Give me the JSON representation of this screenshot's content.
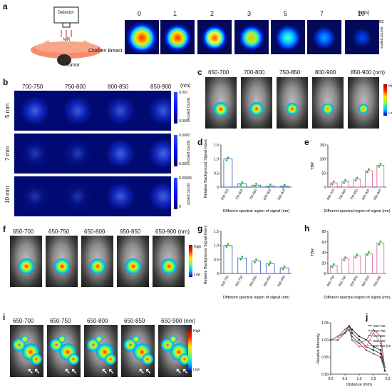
{
  "panels": {
    "a": "a",
    "b": "b",
    "c": "c",
    "d": "d",
    "e": "e",
    "f": "f",
    "g": "g",
    "h": "h",
    "i": "i",
    "j": "j"
  },
  "a": {
    "detector": "Detector",
    "nir": "NIR",
    "chicken": "Chicken Breast",
    "tumor": "Tumor",
    "depths": [
      "0",
      "1",
      "2",
      "3",
      "5",
      "7",
      "10"
    ],
    "unit": "(mm)",
    "scale_max": "0.002",
    "scale_min": "0",
    "scale_label": "scaled counts"
  },
  "b": {
    "ranges": [
      "700-750",
      "750-800",
      "800-850",
      "850-900"
    ],
    "unit": "(nm)",
    "rows": [
      {
        "depth": "5 mm",
        "max": "0.001",
        "min": "0.0005"
      },
      {
        "depth": "7 mm",
        "max": "0.0002",
        "min": "0.0001"
      },
      {
        "depth": "10 mm",
        "max": "0.00005",
        "min": "0"
      }
    ],
    "scale_label": "scaled counts"
  },
  "c": {
    "ranges": [
      "650-700",
      "700-800",
      "750-850",
      "800-900",
      "850-900 (nm)"
    ],
    "high": "High",
    "low": "Low"
  },
  "f": {
    "ranges": [
      "650-700",
      "650-750",
      "650-800",
      "650-850",
      "650-900 (nm)"
    ],
    "high": "High",
    "low": "Low"
  },
  "i": {
    "ranges": [
      "650-700",
      "650-750",
      "650-800",
      "650-850",
      "650-900 (nm)"
    ],
    "high": "High",
    "low": "Low"
  },
  "chart_data": [
    {
      "id": "d",
      "type": "bar",
      "ylabel": "Relative Background Signal Intensity",
      "xlabel": "Different spectral region of signal (nm)",
      "categories": [
        "650-700",
        "700-800",
        "750-850",
        "800-900",
        "850-900"
      ],
      "values": [
        1.0,
        0.12,
        0.07,
        0.04,
        0.03
      ],
      "ylim": [
        0,
        1.5
      ],
      "yticks": [
        "0",
        "0.5",
        "1.0",
        "1.5"
      ]
    },
    {
      "id": "e",
      "type": "bar",
      "ylabel": "TBR",
      "xlabel": "Different spectral region of signal (nm)",
      "categories": [
        "650-700",
        "700-800",
        "750-850",
        "800-900",
        "850-900"
      ],
      "values": [
        15,
        20,
        28,
        58,
        78
      ],
      "ylim": [
        0,
        150
      ],
      "yticks": [
        "0",
        "50",
        "100",
        "150"
      ]
    },
    {
      "id": "g",
      "type": "bar",
      "ylabel": "Relative Background Signal Intensity",
      "xlabel": "Different spectral region of signal (nm)",
      "categories": [
        "650-700",
        "650-750",
        "650-800",
        "650-850",
        "650-900"
      ],
      "values": [
        1.0,
        0.55,
        0.45,
        0.35,
        0.2
      ],
      "ylim": [
        0,
        1.5
      ],
      "yticks": [
        "0",
        "0.5",
        "1.0",
        "1.5"
      ]
    },
    {
      "id": "h",
      "type": "bar",
      "ylabel": "TBR",
      "xlabel": "Different spectral region of signal (nm)",
      "categories": [
        "650-700",
        "650-750",
        "650-800",
        "650-850",
        "650-900"
      ],
      "values": [
        15,
        28,
        33,
        38,
        58
      ],
      "ylim": [
        0,
        80
      ],
      "yticks": [
        "0",
        "20",
        "40",
        "60",
        "80"
      ]
    },
    {
      "id": "j",
      "type": "line",
      "ylabel": "Relative Intensity",
      "xlabel": "Distance (mm)",
      "xlim": [
        0,
        2.0
      ],
      "ylim": [
        0.9,
        1.05
      ],
      "xticks": [
        "0.0",
        "0.5",
        "1.0",
        "1.5",
        "2.0"
      ],
      "yticks": [
        "0.90",
        "0.95",
        "1.00",
        "1.05"
      ],
      "x": [
        0,
        0.25,
        0.5,
        0.65,
        0.75,
        1.0,
        1.25,
        1.5,
        1.75,
        1.9
      ],
      "series": [
        {
          "name": "650-700",
          "values": [
            1.0,
            1.01,
            1.03,
            1.04,
            1.03,
            1.01,
            1.0,
            0.98,
            0.97,
            0.92
          ]
        },
        {
          "name": "650-750",
          "values": [
            1.0,
            1.01,
            1.02,
            1.04,
            1.02,
            1.0,
            0.98,
            0.97,
            0.96,
            0.91
          ]
        },
        {
          "name": "650-800",
          "values": [
            1.0,
            1.0,
            1.02,
            1.03,
            1.01,
            0.99,
            0.97,
            0.96,
            0.95,
            0.91
          ]
        },
        {
          "name": "650-850",
          "values": [
            1.0,
            1.01,
            1.03,
            1.03,
            1.0,
            0.98,
            0.98,
            1.02,
            0.99,
            0.92
          ]
        },
        {
          "name": "650-900 (nm)",
          "values": [
            1.0,
            1.0,
            1.02,
            1.03,
            1.0,
            0.99,
            1.0,
            1.03,
            1.01,
            0.92
          ]
        }
      ]
    }
  ]
}
